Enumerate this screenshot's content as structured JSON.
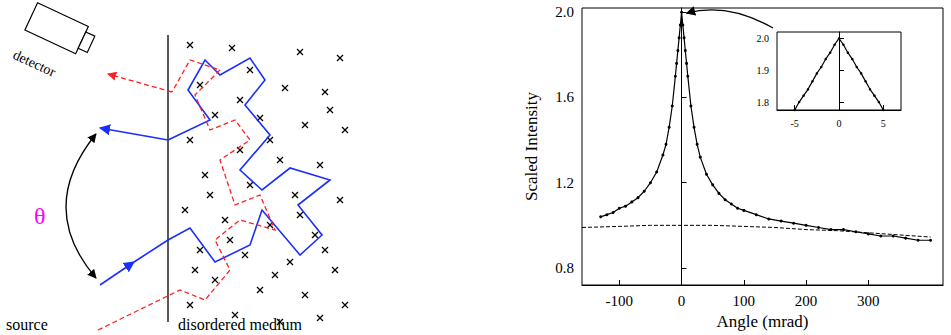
{
  "diagram": {
    "labels": {
      "detector": "detector",
      "angle": "θ",
      "source": "source",
      "medium": "disordered medium"
    }
  },
  "chart_data": [
    {
      "type": "line",
      "x_label": "Angle (mrad)",
      "y_label": "Scaled Intensity",
      "xlim": [
        -160,
        420
      ],
      "xticks": [
        -100,
        0,
        100,
        200,
        300
      ],
      "ylim": [
        0.72,
        2.02
      ],
      "yticks": [
        0.8,
        1.2,
        1.6,
        {
          "value": 2,
          "label": "2.0"
        }
      ],
      "grid": false,
      "series": [
        {
          "color": "#000000",
          "marker": "circle",
          "line_style": "solid",
          "x": [
            -130,
            -120,
            -110,
            -100,
            -90,
            -80,
            -70,
            -60,
            -50,
            -40,
            -30,
            -25,
            -20,
            -15,
            -10,
            -8,
            -6,
            -4,
            -2,
            0,
            2,
            4,
            6,
            8,
            10,
            15,
            20,
            25,
            30,
            40,
            50,
            60,
            70,
            80,
            90,
            100,
            120,
            140,
            160,
            180,
            200,
            220,
            240,
            260,
            280,
            300,
            320,
            340,
            360,
            380,
            400
          ],
          "values": [
            1.04,
            1.05,
            1.06,
            1.08,
            1.09,
            1.11,
            1.13,
            1.16,
            1.2,
            1.25,
            1.33,
            1.38,
            1.46,
            1.56,
            1.7,
            1.76,
            1.82,
            1.88,
            1.94,
            2.0,
            1.94,
            1.88,
            1.82,
            1.76,
            1.7,
            1.56,
            1.46,
            1.38,
            1.32,
            1.24,
            1.19,
            1.15,
            1.12,
            1.1,
            1.08,
            1.07,
            1.05,
            1.03,
            1.02,
            1.01,
            1.0,
            0.99,
            0.98,
            0.98,
            0.97,
            0.96,
            0.95,
            0.95,
            0.94,
            0.93,
            0.93
          ]
        },
        {
          "color": "#000000",
          "marker": "none",
          "line_style": "dashed",
          "x": [
            -160,
            -100,
            -50,
            0,
            50,
            100,
            150,
            200,
            250,
            300,
            350,
            400
          ],
          "values": [
            0.99,
            0.995,
            1.0,
            1.0,
            1.0,
            0.995,
            0.99,
            0.98,
            0.975,
            0.965,
            0.955,
            0.945
          ]
        }
      ]
    },
    {
      "type": "line",
      "xlim": [
        -7,
        7
      ],
      "xticks": [
        -5,
        0,
        5
      ],
      "ylim": [
        1.775,
        2.02
      ],
      "yticks": [
        1.8,
        1.9,
        {
          "value": 2,
          "label": "2.0"
        }
      ],
      "grid": false,
      "series": [
        {
          "color": "#000000",
          "marker": "circle",
          "line_style": "solid",
          "x": [
            -5,
            -4.5,
            -4,
            -3.5,
            -3,
            -2.5,
            -2,
            -1.5,
            -1,
            -0.5,
            0,
            0.5,
            1,
            1.5,
            2,
            2.5,
            3,
            3.5,
            4,
            4.5,
            5
          ],
          "values": [
            1.775,
            1.8,
            1.82,
            1.84,
            1.865,
            1.89,
            1.91,
            1.935,
            1.955,
            1.98,
            2.0,
            1.98,
            1.955,
            1.935,
            1.91,
            1.89,
            1.865,
            1.84,
            1.82,
            1.8,
            1.775
          ]
        }
      ]
    }
  ]
}
